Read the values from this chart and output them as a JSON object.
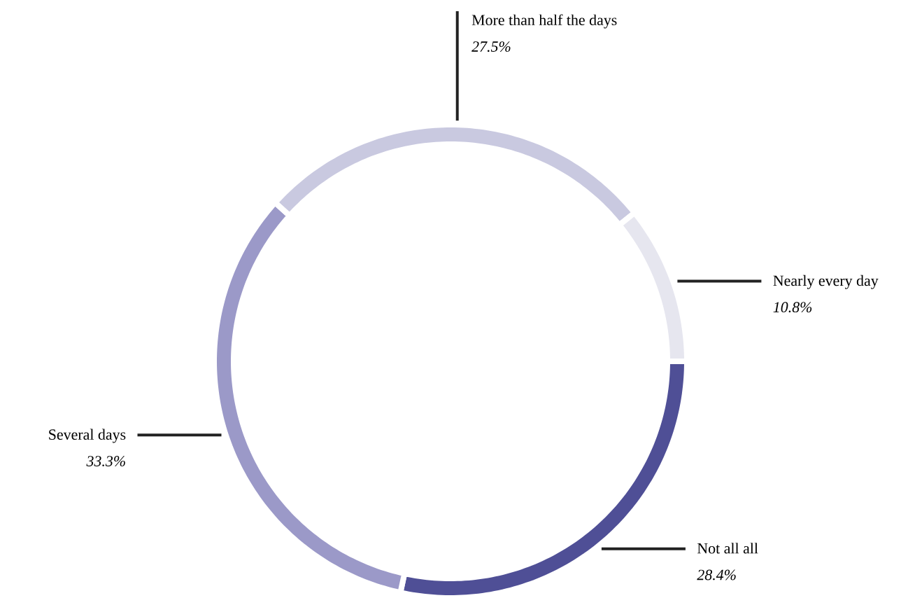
{
  "chart_data": {
    "type": "donut",
    "categories": [
      "Not all all",
      "Several days",
      "More than half the days",
      "Nearly every day"
    ],
    "values": [
      28.4,
      33.3,
      27.5,
      10.8
    ],
    "value_labels": [
      "28.4%",
      "33.3%",
      "27.5%",
      "10.8%"
    ],
    "colors": [
      "#4f4f96",
      "#9b99c8",
      "#c9c9e0",
      "#e6e6ef"
    ]
  }
}
